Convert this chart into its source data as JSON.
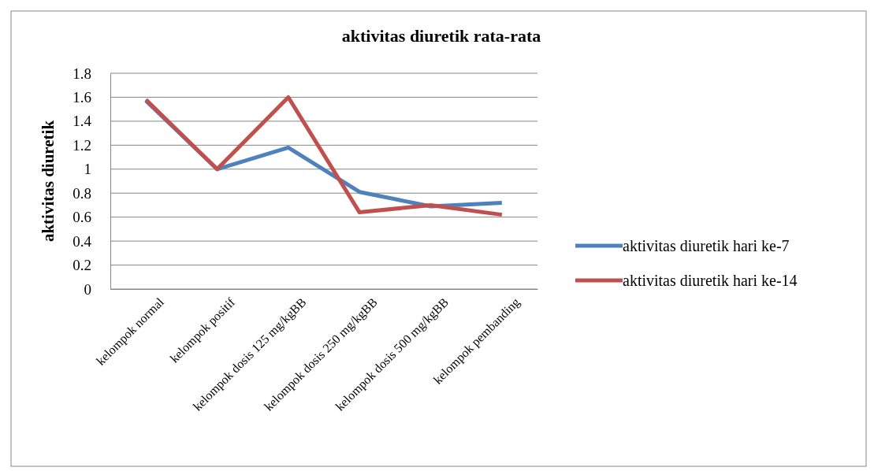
{
  "chart_data": {
    "type": "line",
    "title": "aktivitas diuretik rata-rata",
    "ylabel": "aktivitas diuretik",
    "categories": [
      "kelompok normal",
      "kelompok positif",
      "kelompok dosis 125 mg/kgBB",
      "kelompok dosis 250 mg/kgBB",
      "kelompok dosis 500 mg/kgBB",
      "kelompok pembanding"
    ],
    "series": [
      {
        "name": "aktivitas diuretik hari ke-7",
        "color": "#4f81bd",
        "values": [
          1.57,
          1.0,
          1.18,
          0.81,
          0.69,
          0.72
        ]
      },
      {
        "name": "aktivitas diuretik hari ke-14",
        "color": "#c0504d",
        "values": [
          1.58,
          1.0,
          1.6,
          0.64,
          0.7,
          0.62
        ]
      }
    ],
    "ylim": [
      0,
      1.8
    ],
    "yticks": [
      0,
      0.2,
      0.4,
      0.6,
      0.8,
      1,
      1.2,
      1.4,
      1.6,
      1.8
    ],
    "grid": "y",
    "legend": "right",
    "marker": "none",
    "line_style": "solid"
  }
}
